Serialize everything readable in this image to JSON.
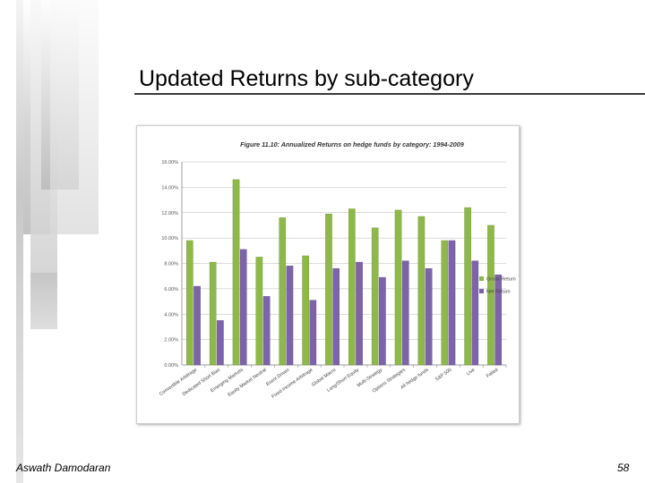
{
  "slide": {
    "title": "Updated Returns by sub-category",
    "author": "Aswath Damodaran",
    "page": "58"
  },
  "chart_data": {
    "type": "bar",
    "title": "Figure 11.10: Annualized Returns on hedge funds by category: 1994-2009",
    "xlabel": "",
    "ylabel": "",
    "ylim": [
      0,
      16
    ],
    "y_ticks": [
      "0.00%",
      "2.00%",
      "4.00%",
      "6.00%",
      "8.00%",
      "10.00%",
      "12.00%",
      "14.00%",
      "16.00%"
    ],
    "grid": true,
    "legend_position": "right",
    "categories": [
      "Convertible Arbitrage",
      "Dedicated Short Bias",
      "Emerging Markets",
      "Equity Market Neutral",
      "Event Driven",
      "Fixed Income Arbitrage",
      "Global Macro",
      "Long/Short Equity",
      "Multi-Strategy",
      "Options Strategies",
      "All hedge funds",
      "S&P 500",
      "Live",
      "Failed"
    ],
    "series": [
      {
        "name": "Gross Return",
        "color": "#8fb84a",
        "values": [
          9.8,
          8.1,
          14.6,
          8.5,
          11.6,
          8.6,
          11.9,
          12.3,
          10.8,
          12.2,
          11.7,
          9.8,
          12.4,
          11.0
        ]
      },
      {
        "name": "Net Return",
        "color": "#7d63a8",
        "values": [
          6.2,
          3.5,
          9.1,
          5.4,
          7.8,
          5.1,
          7.6,
          8.1,
          6.9,
          8.2,
          7.6,
          9.8,
          8.2,
          7.1
        ]
      }
    ]
  }
}
